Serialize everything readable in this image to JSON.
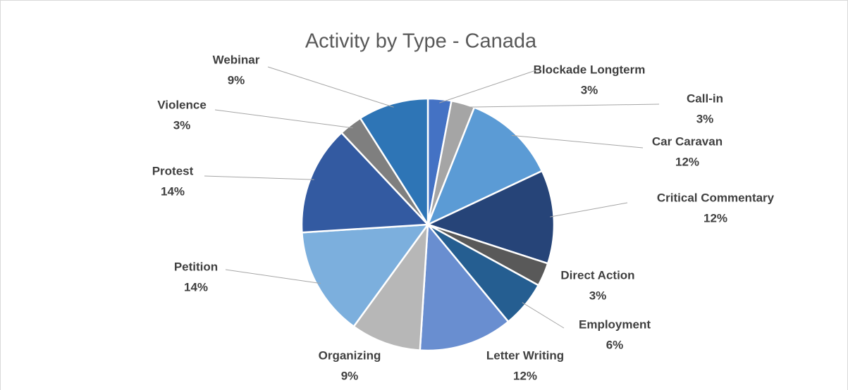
{
  "chart_data": {
    "type": "pie",
    "title": "Activity by Type - Canada",
    "categories": [
      "Blockade Longterm",
      "Call-in",
      "Car Caravan",
      "Critical Commentary",
      "Direct Action",
      "Employment",
      "Letter Writing",
      "Organizing",
      "Petition",
      "Protest",
      "Violence",
      "Webinar"
    ],
    "values": [
      3,
      3,
      12,
      12,
      3,
      6,
      12,
      9,
      14,
      14,
      3,
      9
    ],
    "value_labels": [
      "3%",
      "3%",
      "12%",
      "12%",
      "3%",
      "6%",
      "12%",
      "9%",
      "14%",
      "14%",
      "3%",
      "9%"
    ],
    "colors": [
      "#4472c4",
      "#a5a5a5",
      "#5b9bd5",
      "#264478",
      "#595959",
      "#255e91",
      "#698ed0",
      "#b7b7b7",
      "#7cafdd",
      "#335aa1",
      "#7f7f7f",
      "#2e75b6"
    ]
  }
}
